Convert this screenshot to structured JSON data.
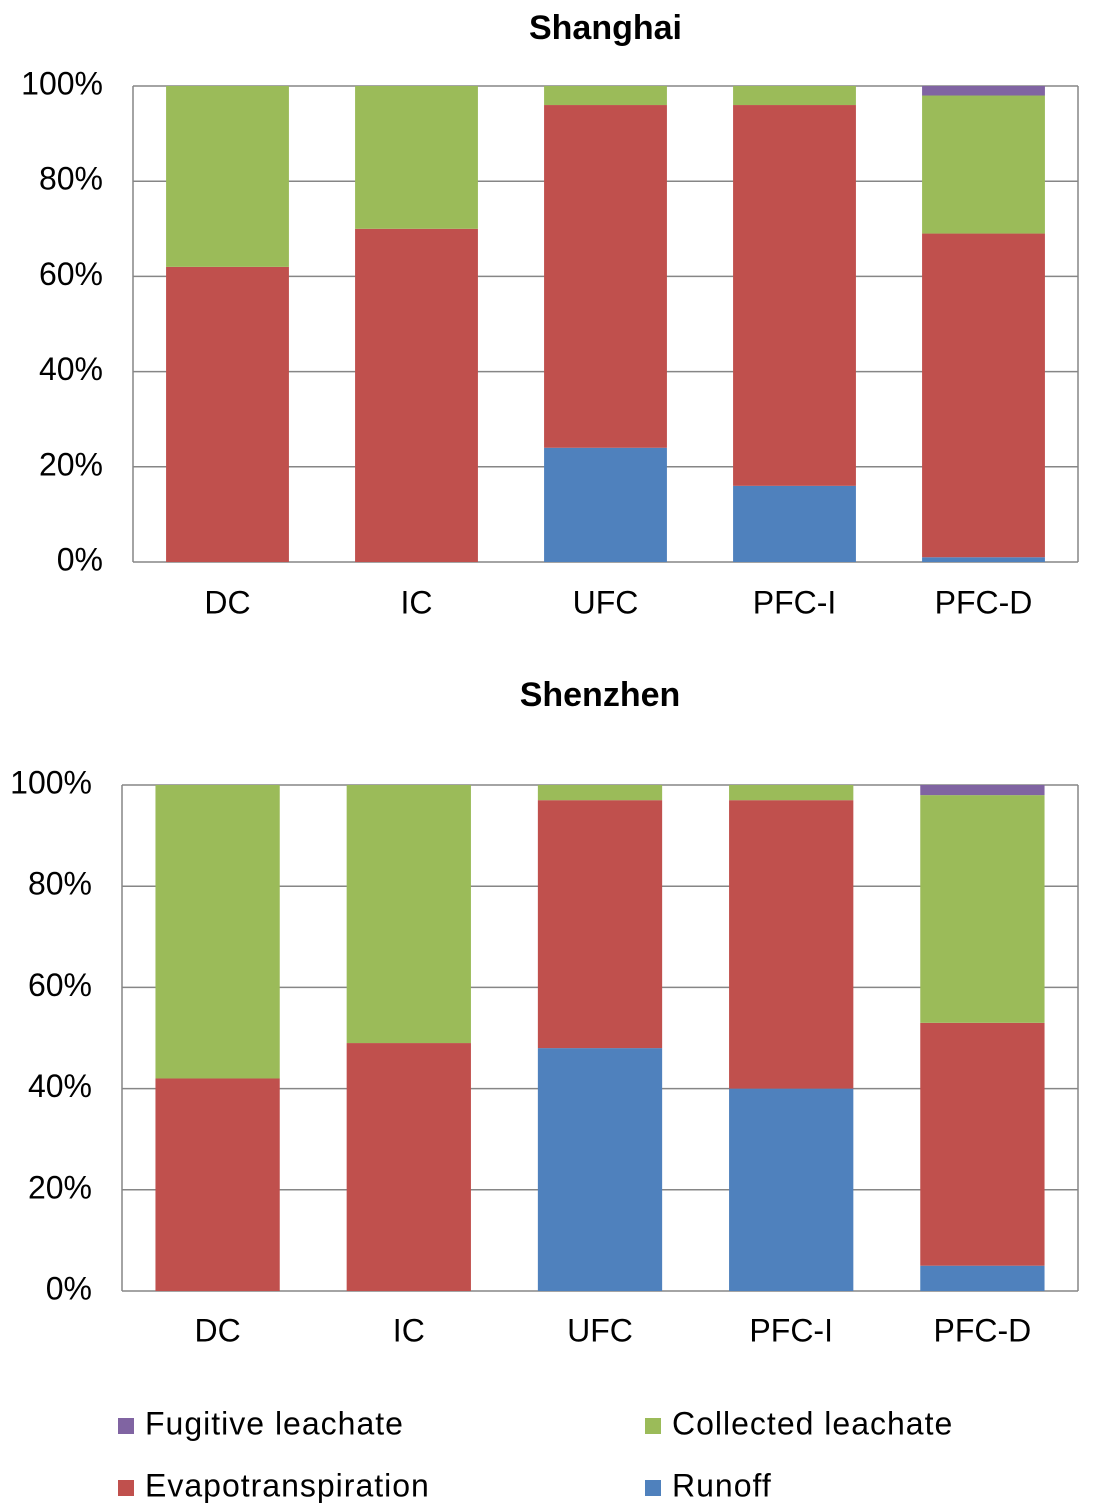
{
  "legend": [
    {
      "name": "Fugitive leachate",
      "color": "#8064a2"
    },
    {
      "name": "Collected leachate",
      "color": "#9bbb59"
    },
    {
      "name": "Evapotranspiration",
      "color": "#c0504d"
    },
    {
      "name": "Runoff",
      "color": "#4f81bd"
    }
  ],
  "chart_data": [
    {
      "type": "stacked_bar",
      "title": "Shanghai",
      "categories": [
        "DC",
        "IC",
        "UFC",
        "PFC-I",
        "PFC-D"
      ],
      "series": [
        {
          "values": [
            0,
            0,
            24,
            16,
            1
          ]
        },
        {
          "values": [
            62,
            70,
            72,
            80,
            68
          ]
        },
        {
          "values": [
            38,
            30,
            4,
            4,
            29
          ]
        },
        {
          "values": [
            0,
            0,
            0,
            0,
            2
          ]
        }
      ],
      "ylim": [
        0,
        100
      ],
      "yticks": [
        {
          "value": 0,
          "label": "0%"
        },
        {
          "value": 20,
          "label": "20%"
        },
        {
          "value": 40,
          "label": "40%"
        },
        {
          "value": 60,
          "label": "60%"
        },
        {
          "value": 80,
          "label": "80%"
        },
        {
          "value": 100,
          "label": "100%"
        }
      ],
      "grid": true
    },
    {
      "type": "stacked_bar",
      "title": "Shenzhen",
      "categories": [
        "DC",
        "IC",
        "UFC",
        "PFC-I",
        "PFC-D"
      ],
      "series": [
        {
          "values": [
            0,
            0,
            48,
            40,
            5
          ]
        },
        {
          "values": [
            42,
            49,
            49,
            57,
            48
          ]
        },
        {
          "values": [
            58,
            51,
            3,
            3,
            45
          ]
        },
        {
          "values": [
            0,
            0,
            0,
            0,
            2
          ]
        }
      ],
      "ylim": [
        0,
        100
      ],
      "yticks": [
        {
          "value": 0,
          "label": "0%"
        },
        {
          "value": 20,
          "label": "20%"
        },
        {
          "value": 40,
          "label": "40%"
        },
        {
          "value": 60,
          "label": "60%"
        },
        {
          "value": 80,
          "label": "80%"
        },
        {
          "value": 100,
          "label": "100%"
        }
      ],
      "grid": true
    }
  ]
}
